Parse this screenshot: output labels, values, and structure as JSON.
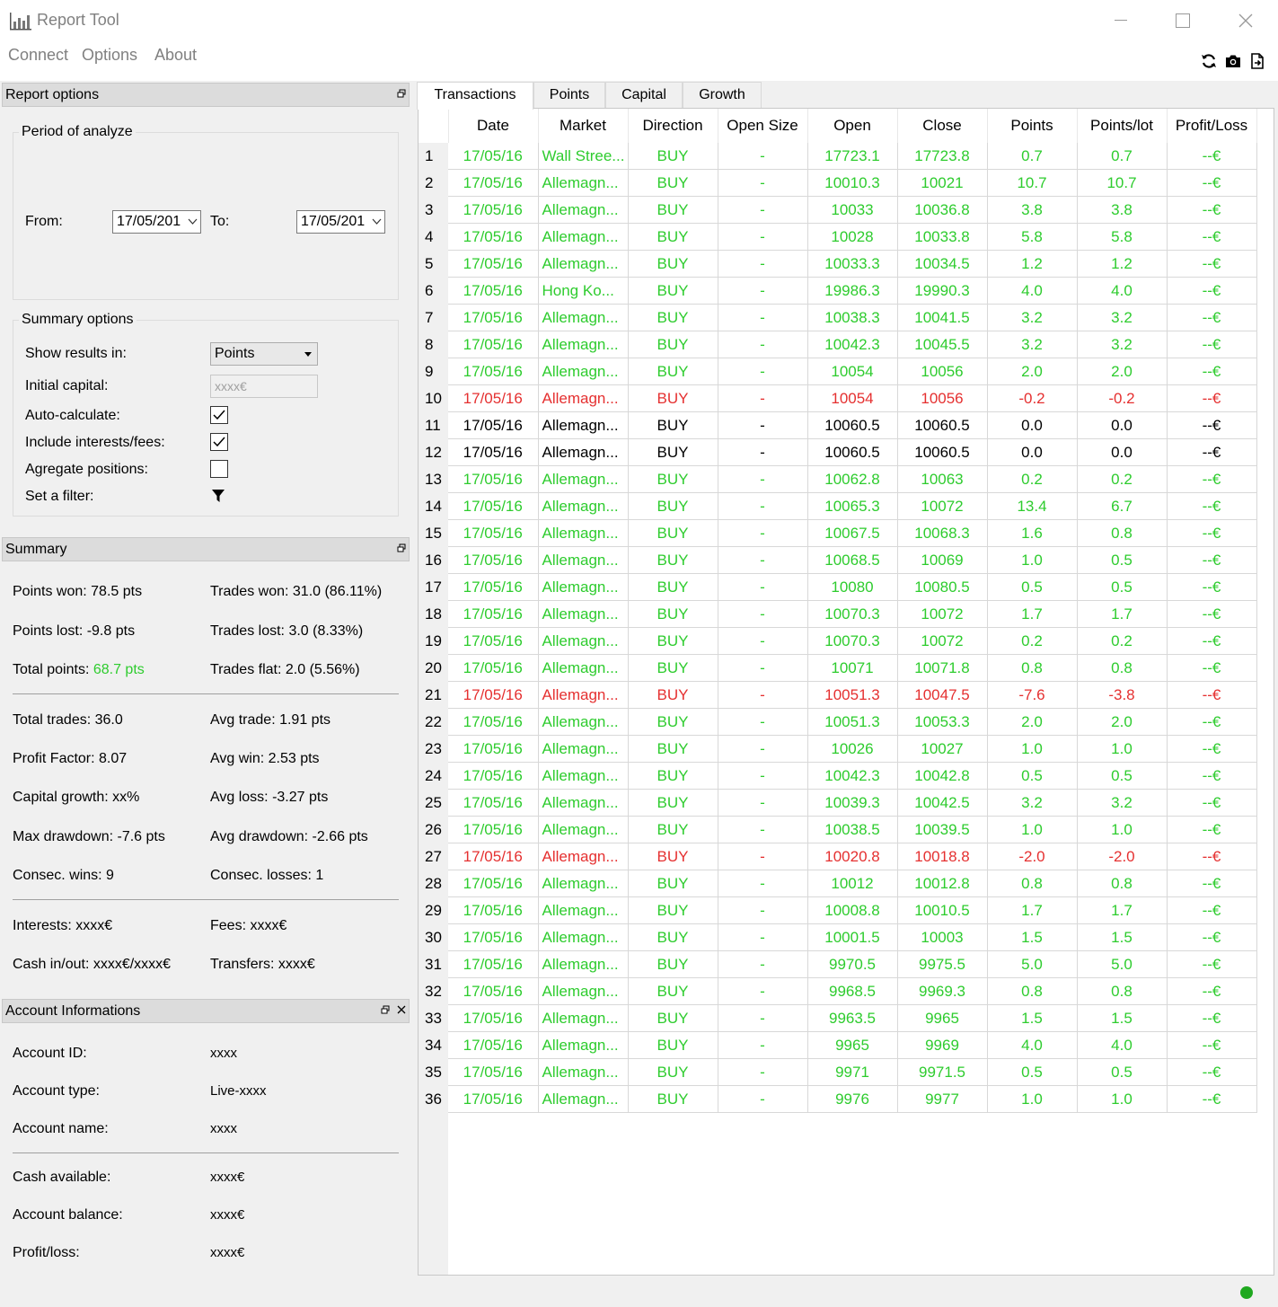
{
  "window": {
    "title": "Report Tool",
    "minimize": "—",
    "maximize": "☐",
    "close": "✕"
  },
  "menu": {
    "connect": "Connect",
    "options": "Options",
    "about": "About"
  },
  "toolbar": {
    "refresh_icon": "refresh-icon",
    "camera_icon": "camera-icon",
    "export_icon": "export-icon"
  },
  "report_options": {
    "header": "Report options",
    "period": {
      "title": "Period of analyze",
      "from_label": "From:",
      "from_value": "17/05/201",
      "to_label": "To:",
      "to_value": "17/05/201"
    },
    "summary": {
      "title": "Summary options",
      "show_results_label": "Show results in:",
      "show_results_value": "Points",
      "initial_capital_label": "Initial capital:",
      "initial_capital_placeholder": "xxxx€",
      "auto_calc_label": "Auto-calculate:",
      "auto_calc_checked": true,
      "interests_label": "Include interests/fees:",
      "interests_checked": true,
      "aggregate_label": "Agregate positions:",
      "aggregate_checked": false,
      "filter_label": "Set a filter:"
    }
  },
  "summary": {
    "header": "Summary",
    "points_won": "Points won: 78.5 pts",
    "trades_won": "Trades won: 31.0 (86.11%)",
    "points_lost": "Points lost: -9.8 pts",
    "trades_lost": "Trades lost: 3.0 (8.33%)",
    "total_points_label": "Total points: ",
    "total_points_value": "68.7 pts",
    "trades_flat": "Trades flat: 2.0 (5.56%)",
    "total_trades": "Total trades: 36.0",
    "avg_trade": "Avg trade: 1.91 pts",
    "profit_factor": "Profit Factor: 8.07",
    "avg_win": "Avg win: 2.53 pts",
    "capital_growth": "Capital growth: xx%",
    "avg_loss": "Avg loss: -3.27 pts",
    "max_drawdown": "Max drawdown: -7.6 pts",
    "avg_drawdown": "Avg drawdown: -2.66 pts",
    "consec_wins": "Consec. wins: 9",
    "consec_losses": "Consec. losses: 1",
    "interests": "Interests: xxxx€",
    "fees": "Fees: xxxx€",
    "cash_inout": "Cash in/out: xxxx€/xxxx€",
    "transfers": "Transfers: xxxx€"
  },
  "account": {
    "header": "Account Informations",
    "id_label": "Account ID:",
    "id_value": "xxxx",
    "type_label": "Account type:",
    "type_value": "Live-xxxx",
    "name_label": "Account name:",
    "name_value": "xxxx",
    "cash_label": "Cash available:",
    "cash_value": "xxxx€",
    "balance_label": "Account balance:",
    "balance_value": "xxxx€",
    "pl_label": "Profit/loss:",
    "pl_value": "xxxx€"
  },
  "tabs": [
    "Transactions",
    "Points",
    "Capital",
    "Growth"
  ],
  "colors": {
    "green": "#2ecc2e",
    "red": "#e53030",
    "black": "#000000"
  },
  "columns": [
    "Date",
    "Market",
    "Direction",
    "Open Size",
    "Open",
    "Close",
    "Points",
    "Points/lot",
    "Profit/Loss"
  ],
  "rows": [
    {
      "n": "1",
      "date": "17/05/16",
      "market": "Wall Stree...",
      "dir": "BUY",
      "size": "-",
      "open": "17723.1",
      "close": "17723.8",
      "points": "0.7",
      "ppl": "0.7",
      "pl": "--€",
      "c": "green"
    },
    {
      "n": "2",
      "date": "17/05/16",
      "market": "Allemagn...",
      "dir": "BUY",
      "size": "-",
      "open": "10010.3",
      "close": "10021",
      "points": "10.7",
      "ppl": "10.7",
      "pl": "--€",
      "c": "green"
    },
    {
      "n": "3",
      "date": "17/05/16",
      "market": "Allemagn...",
      "dir": "BUY",
      "size": "-",
      "open": "10033",
      "close": "10036.8",
      "points": "3.8",
      "ppl": "3.8",
      "pl": "--€",
      "c": "green"
    },
    {
      "n": "4",
      "date": "17/05/16",
      "market": "Allemagn...",
      "dir": "BUY",
      "size": "-",
      "open": "10028",
      "close": "10033.8",
      "points": "5.8",
      "ppl": "5.8",
      "pl": "--€",
      "c": "green"
    },
    {
      "n": "5",
      "date": "17/05/16",
      "market": "Allemagn...",
      "dir": "BUY",
      "size": "-",
      "open": "10033.3",
      "close": "10034.5",
      "points": "1.2",
      "ppl": "1.2",
      "pl": "--€",
      "c": "green"
    },
    {
      "n": "6",
      "date": "17/05/16",
      "market": "Hong Ko...",
      "dir": "BUY",
      "size": "-",
      "open": "19986.3",
      "close": "19990.3",
      "points": "4.0",
      "ppl": "4.0",
      "pl": "--€",
      "c": "green"
    },
    {
      "n": "7",
      "date": "17/05/16",
      "market": "Allemagn...",
      "dir": "BUY",
      "size": "-",
      "open": "10038.3",
      "close": "10041.5",
      "points": "3.2",
      "ppl": "3.2",
      "pl": "--€",
      "c": "green"
    },
    {
      "n": "8",
      "date": "17/05/16",
      "market": "Allemagn...",
      "dir": "BUY",
      "size": "-",
      "open": "10042.3",
      "close": "10045.5",
      "points": "3.2",
      "ppl": "3.2",
      "pl": "--€",
      "c": "green"
    },
    {
      "n": "9",
      "date": "17/05/16",
      "market": "Allemagn...",
      "dir": "BUY",
      "size": "-",
      "open": "10054",
      "close": "10056",
      "points": "2.0",
      "ppl": "2.0",
      "pl": "--€",
      "c": "green"
    },
    {
      "n": "10",
      "date": "17/05/16",
      "market": "Allemagn...",
      "dir": "BUY",
      "size": "-",
      "open": "10054",
      "close": "10056",
      "points": "-0.2",
      "ppl": "-0.2",
      "pl": "--€",
      "c": "red"
    },
    {
      "n": "11",
      "date": "17/05/16",
      "market": "Allemagn...",
      "dir": "BUY",
      "size": "-",
      "open": "10060.5",
      "close": "10060.5",
      "points": "0.0",
      "ppl": "0.0",
      "pl": "--€",
      "c": "black"
    },
    {
      "n": "12",
      "date": "17/05/16",
      "market": "Allemagn...",
      "dir": "BUY",
      "size": "-",
      "open": "10060.5",
      "close": "10060.5",
      "points": "0.0",
      "ppl": "0.0",
      "pl": "--€",
      "c": "black"
    },
    {
      "n": "13",
      "date": "17/05/16",
      "market": "Allemagn...",
      "dir": "BUY",
      "size": "-",
      "open": "10062.8",
      "close": "10063",
      "points": "0.2",
      "ppl": "0.2",
      "pl": "--€",
      "c": "green"
    },
    {
      "n": "14",
      "date": "17/05/16",
      "market": "Allemagn...",
      "dir": "BUY",
      "size": "-",
      "open": "10065.3",
      "close": "10072",
      "points": "13.4",
      "ppl": "6.7",
      "pl": "--€",
      "c": "green"
    },
    {
      "n": "15",
      "date": "17/05/16",
      "market": "Allemagn...",
      "dir": "BUY",
      "size": "-",
      "open": "10067.5",
      "close": "10068.3",
      "points": "1.6",
      "ppl": "0.8",
      "pl": "--€",
      "c": "green"
    },
    {
      "n": "16",
      "date": "17/05/16",
      "market": "Allemagn...",
      "dir": "BUY",
      "size": "-",
      "open": "10068.5",
      "close": "10069",
      "points": "1.0",
      "ppl": "0.5",
      "pl": "--€",
      "c": "green"
    },
    {
      "n": "17",
      "date": "17/05/16",
      "market": "Allemagn...",
      "dir": "BUY",
      "size": "-",
      "open": "10080",
      "close": "10080.5",
      "points": "0.5",
      "ppl": "0.5",
      "pl": "--€",
      "c": "green"
    },
    {
      "n": "18",
      "date": "17/05/16",
      "market": "Allemagn...",
      "dir": "BUY",
      "size": "-",
      "open": "10070.3",
      "close": "10072",
      "points": "1.7",
      "ppl": "1.7",
      "pl": "--€",
      "c": "green"
    },
    {
      "n": "19",
      "date": "17/05/16",
      "market": "Allemagn...",
      "dir": "BUY",
      "size": "-",
      "open": "10070.3",
      "close": "10072",
      "points": "0.2",
      "ppl": "0.2",
      "pl": "--€",
      "c": "green"
    },
    {
      "n": "20",
      "date": "17/05/16",
      "market": "Allemagn...",
      "dir": "BUY",
      "size": "-",
      "open": "10071",
      "close": "10071.8",
      "points": "0.8",
      "ppl": "0.8",
      "pl": "--€",
      "c": "green"
    },
    {
      "n": "21",
      "date": "17/05/16",
      "market": "Allemagn...",
      "dir": "BUY",
      "size": "-",
      "open": "10051.3",
      "close": "10047.5",
      "points": "-7.6",
      "ppl": "-3.8",
      "pl": "--€",
      "c": "red"
    },
    {
      "n": "22",
      "date": "17/05/16",
      "market": "Allemagn...",
      "dir": "BUY",
      "size": "-",
      "open": "10051.3",
      "close": "10053.3",
      "points": "2.0",
      "ppl": "2.0",
      "pl": "--€",
      "c": "green"
    },
    {
      "n": "23",
      "date": "17/05/16",
      "market": "Allemagn...",
      "dir": "BUY",
      "size": "-",
      "open": "10026",
      "close": "10027",
      "points": "1.0",
      "ppl": "1.0",
      "pl": "--€",
      "c": "green"
    },
    {
      "n": "24",
      "date": "17/05/16",
      "market": "Allemagn...",
      "dir": "BUY",
      "size": "-",
      "open": "10042.3",
      "close": "10042.8",
      "points": "0.5",
      "ppl": "0.5",
      "pl": "--€",
      "c": "green"
    },
    {
      "n": "25",
      "date": "17/05/16",
      "market": "Allemagn...",
      "dir": "BUY",
      "size": "-",
      "open": "10039.3",
      "close": "10042.5",
      "points": "3.2",
      "ppl": "3.2",
      "pl": "--€",
      "c": "green"
    },
    {
      "n": "26",
      "date": "17/05/16",
      "market": "Allemagn...",
      "dir": "BUY",
      "size": "-",
      "open": "10038.5",
      "close": "10039.5",
      "points": "1.0",
      "ppl": "1.0",
      "pl": "--€",
      "c": "green"
    },
    {
      "n": "27",
      "date": "17/05/16",
      "market": "Allemagn...",
      "dir": "BUY",
      "size": "-",
      "open": "10020.8",
      "close": "10018.8",
      "points": "-2.0",
      "ppl": "-2.0",
      "pl": "--€",
      "c": "red"
    },
    {
      "n": "28",
      "date": "17/05/16",
      "market": "Allemagn...",
      "dir": "BUY",
      "size": "-",
      "open": "10012",
      "close": "10012.8",
      "points": "0.8",
      "ppl": "0.8",
      "pl": "--€",
      "c": "green"
    },
    {
      "n": "29",
      "date": "17/05/16",
      "market": "Allemagn...",
      "dir": "BUY",
      "size": "-",
      "open": "10008.8",
      "close": "10010.5",
      "points": "1.7",
      "ppl": "1.7",
      "pl": "--€",
      "c": "green"
    },
    {
      "n": "30",
      "date": "17/05/16",
      "market": "Allemagn...",
      "dir": "BUY",
      "size": "-",
      "open": "10001.5",
      "close": "10003",
      "points": "1.5",
      "ppl": "1.5",
      "pl": "--€",
      "c": "green"
    },
    {
      "n": "31",
      "date": "17/05/16",
      "market": "Allemagn...",
      "dir": "BUY",
      "size": "-",
      "open": "9970.5",
      "close": "9975.5",
      "points": "5.0",
      "ppl": "5.0",
      "pl": "--€",
      "c": "green"
    },
    {
      "n": "32",
      "date": "17/05/16",
      "market": "Allemagn...",
      "dir": "BUY",
      "size": "-",
      "open": "9968.5",
      "close": "9969.3",
      "points": "0.8",
      "ppl": "0.8",
      "pl": "--€",
      "c": "green"
    },
    {
      "n": "33",
      "date": "17/05/16",
      "market": "Allemagn...",
      "dir": "BUY",
      "size": "-",
      "open": "9963.5",
      "close": "9965",
      "points": "1.5",
      "ppl": "1.5",
      "pl": "--€",
      "c": "green"
    },
    {
      "n": "34",
      "date": "17/05/16",
      "market": "Allemagn...",
      "dir": "BUY",
      "size": "-",
      "open": "9965",
      "close": "9969",
      "points": "4.0",
      "ppl": "4.0",
      "pl": "--€",
      "c": "green"
    },
    {
      "n": "35",
      "date": "17/05/16",
      "market": "Allemagn...",
      "dir": "BUY",
      "size": "-",
      "open": "9971",
      "close": "9971.5",
      "points": "0.5",
      "ppl": "0.5",
      "pl": "--€",
      "c": "green"
    },
    {
      "n": "36",
      "date": "17/05/16",
      "market": "Allemagn...",
      "dir": "BUY",
      "size": "-",
      "open": "9976",
      "close": "9977",
      "points": "1.0",
      "ppl": "1.0",
      "pl": "--€",
      "c": "green"
    }
  ]
}
